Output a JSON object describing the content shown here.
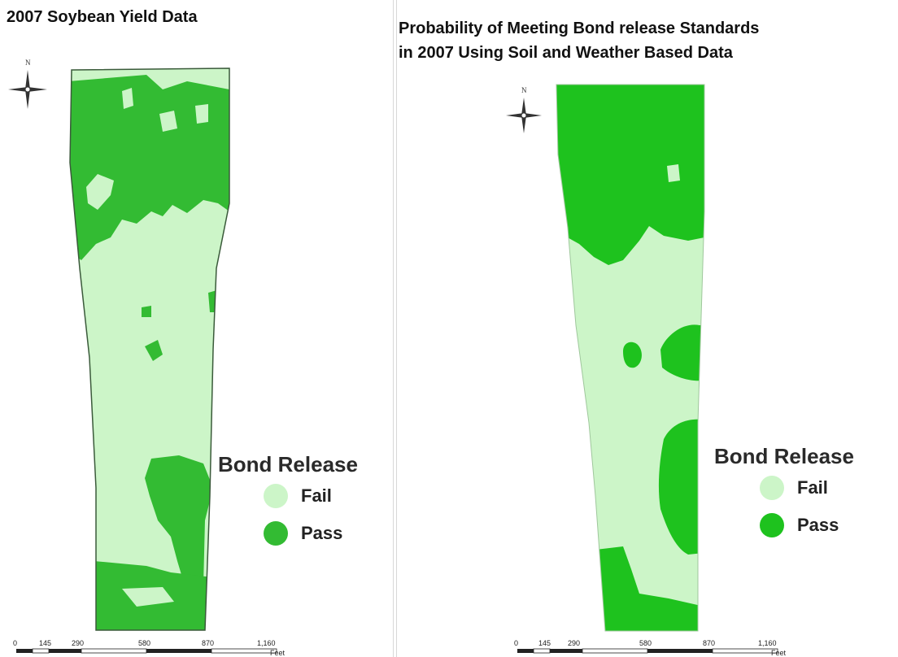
{
  "left_map": {
    "title": "2007 Soybean Yield Data",
    "north_label": "N",
    "legend": {
      "title": "Bond Release",
      "items": [
        {
          "label": "Fail",
          "color": "#ccf5c8"
        },
        {
          "label": "Pass",
          "color": "#33bb33"
        }
      ]
    },
    "scale_bar": {
      "ticks": [
        "0",
        "145",
        "290",
        "580",
        "870",
        "1,160"
      ],
      "unit": "Feet"
    }
  },
  "right_map": {
    "title_lines": [
      "Probability of Meeting Bond release  Standards",
      "in 2007 Using Soil and Weather Based Data"
    ],
    "north_label": "N",
    "legend": {
      "title": "Bond Release",
      "items": [
        {
          "label": "Fail",
          "color": "#ccf5c8"
        },
        {
          "label": "Pass",
          "color": "#1ec21e"
        }
      ]
    },
    "scale_bar": {
      "ticks": [
        "0",
        "145",
        "290",
        "580",
        "870",
        "1,160"
      ],
      "unit": "Feet"
    }
  },
  "colors": {
    "fail_fill": "#ccf5c8",
    "pass_left": "#33bb33",
    "pass_right": "#1ec21e",
    "outline": "#3a5a3a"
  }
}
